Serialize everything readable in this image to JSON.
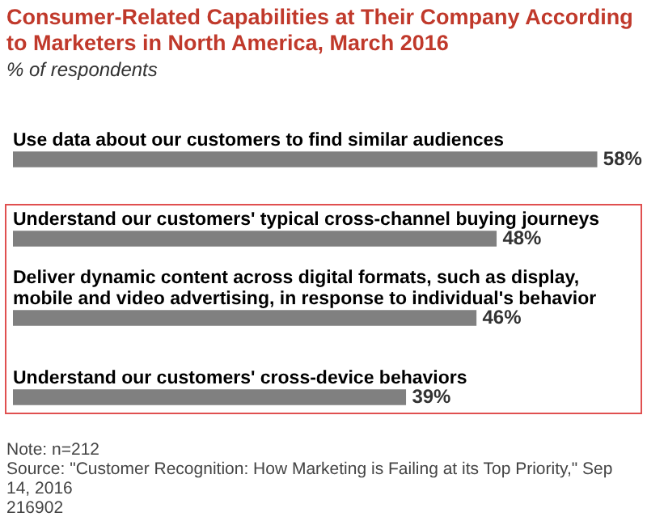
{
  "chart_data": {
    "type": "bar",
    "orientation": "horizontal",
    "title": "Consumer-Related Capabilities at Their Company According to Marketers in North America, March 2016",
    "subtitle": "% of respondents",
    "categories": [
      "Use data about our customers to find similar audiences",
      "Understand our customers' typical cross-channel buying journeys",
      "Deliver dynamic content across digital formats, such as display, mobile and video advertising, in response to individual's behavior",
      "Understand our customers' cross-device behaviors"
    ],
    "values": [
      58,
      48,
      46,
      39
    ],
    "value_labels": [
      "58%",
      "48%",
      "46%",
      "39%"
    ],
    "color": "#808080",
    "legend": false,
    "annotations": [
      "Note: n=212",
      "Source: \"Customer Recognition: How Marketing is Failing at its Top Priority,\" Sep 14, 2016",
      "216902"
    ]
  }
}
